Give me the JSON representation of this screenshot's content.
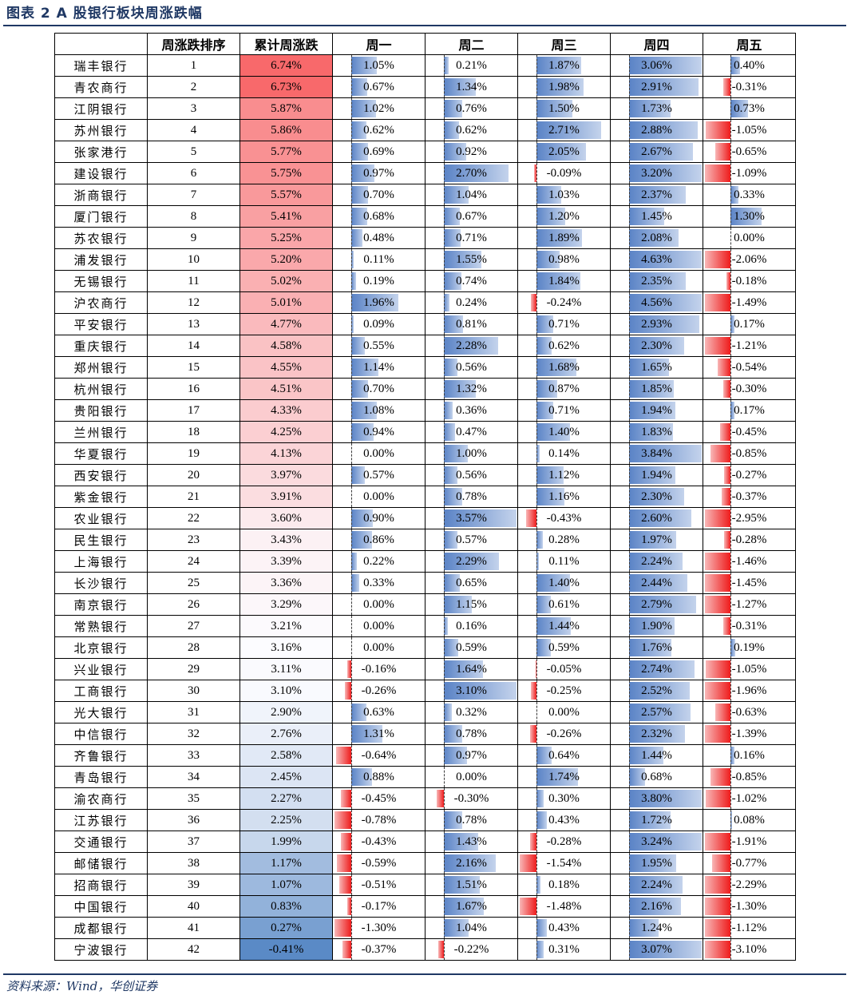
{
  "figure_title": "图表 2   A 股银行板块周涨跌幅",
  "source": "资料来源：Wind，华创证券",
  "colors": {
    "title": "#1f3864",
    "pos_bar": "#5a83c6",
    "neg_bar": "#ee1c1c",
    "heat_high": "#f8696b",
    "heat_low": "#5a8ac6"
  },
  "chart_data": {
    "type": "table",
    "title": "A 股银行板块周涨跌幅",
    "columns": [
      "",
      "周涨跌排序",
      "累计周涨跌",
      "周一",
      "周二",
      "周三",
      "周四",
      "周五"
    ],
    "days": [
      "周一",
      "周二",
      "周三",
      "周四",
      "周五"
    ],
    "rows": [
      {
        "bank": "瑞丰银行",
        "rank": 1,
        "cum": "6.74%",
        "cum_v": 6.74,
        "d": [
          1.05,
          0.21,
          1.87,
          3.06,
          0.4
        ],
        "t": [
          "1.05%",
          "0.21%",
          "1.87%",
          "3.06%",
          "0.40%"
        ]
      },
      {
        "bank": "青农商行",
        "rank": 2,
        "cum": "6.73%",
        "cum_v": 6.73,
        "d": [
          0.67,
          1.34,
          1.98,
          2.91,
          -0.31
        ],
        "t": [
          "0.67%",
          "1.34%",
          "1.98%",
          "2.91%",
          "-0.31%"
        ]
      },
      {
        "bank": "江阴银行",
        "rank": 3,
        "cum": "5.87%",
        "cum_v": 5.87,
        "d": [
          1.02,
          0.76,
          1.5,
          1.73,
          0.73
        ],
        "t": [
          "1.02%",
          "0.76%",
          "1.50%",
          "1.73%",
          "0.73%"
        ]
      },
      {
        "bank": "苏州银行",
        "rank": 4,
        "cum": "5.86%",
        "cum_v": 5.86,
        "d": [
          0.62,
          0.62,
          2.71,
          2.88,
          -1.05
        ],
        "t": [
          "0.62%",
          "0.62%",
          "2.71%",
          "2.88%",
          "-1.05%"
        ]
      },
      {
        "bank": "张家港行",
        "rank": 5,
        "cum": "5.77%",
        "cum_v": 5.77,
        "d": [
          0.69,
          0.92,
          2.05,
          2.67,
          -0.65
        ],
        "t": [
          "0.69%",
          "0.92%",
          "2.05%",
          "2.67%",
          "-0.65%"
        ]
      },
      {
        "bank": "建设银行",
        "rank": 6,
        "cum": "5.75%",
        "cum_v": 5.75,
        "d": [
          0.97,
          2.7,
          -0.09,
          3.2,
          -1.09
        ],
        "t": [
          "0.97%",
          "2.70%",
          "-0.09%",
          "3.20%",
          "-1.09%"
        ]
      },
      {
        "bank": "浙商银行",
        "rank": 7,
        "cum": "5.57%",
        "cum_v": 5.57,
        "d": [
          0.7,
          1.04,
          1.03,
          2.37,
          0.33
        ],
        "t": [
          "0.70%",
          "1.04%",
          "1.03%",
          "2.37%",
          "0.33%"
        ]
      },
      {
        "bank": "厦门银行",
        "rank": 8,
        "cum": "5.41%",
        "cum_v": 5.41,
        "d": [
          0.68,
          0.67,
          1.2,
          1.45,
          1.3
        ],
        "t": [
          "0.68%",
          "0.67%",
          "1.20%",
          "1.45%",
          "1.30%"
        ]
      },
      {
        "bank": "苏农银行",
        "rank": 9,
        "cum": "5.25%",
        "cum_v": 5.25,
        "d": [
          0.48,
          0.71,
          1.89,
          2.08,
          0.0
        ],
        "t": [
          "0.48%",
          "0.71%",
          "1.89%",
          "2.08%",
          "0.00%"
        ]
      },
      {
        "bank": "浦发银行",
        "rank": 10,
        "cum": "5.20%",
        "cum_v": 5.2,
        "d": [
          0.11,
          1.55,
          0.98,
          4.63,
          -2.06
        ],
        "t": [
          "0.11%",
          "1.55%",
          "0.98%",
          "4.63%",
          "-2.06%"
        ]
      },
      {
        "bank": "无锡银行",
        "rank": 11,
        "cum": "5.02%",
        "cum_v": 5.02,
        "d": [
          0.19,
          0.74,
          1.84,
          2.35,
          -0.18
        ],
        "t": [
          "0.19%",
          "0.74%",
          "1.84%",
          "2.35%",
          "-0.18%"
        ]
      },
      {
        "bank": "沪农商行",
        "rank": 12,
        "cum": "5.01%",
        "cum_v": 5.01,
        "d": [
          1.96,
          0.24,
          -0.24,
          4.56,
          -1.49
        ],
        "t": [
          "1.96%",
          "0.24%",
          "-0.24%",
          "4.56%",
          "-1.49%"
        ]
      },
      {
        "bank": "平安银行",
        "rank": 13,
        "cum": "4.77%",
        "cum_v": 4.77,
        "d": [
          0.09,
          0.81,
          0.71,
          2.93,
          0.17
        ],
        "t": [
          "0.09%",
          "0.81%",
          "0.71%",
          "2.93%",
          "0.17%"
        ]
      },
      {
        "bank": "重庆银行",
        "rank": 14,
        "cum": "4.58%",
        "cum_v": 4.58,
        "d": [
          0.55,
          2.28,
          0.62,
          2.3,
          -1.21
        ],
        "t": [
          "0.55%",
          "2.28%",
          "0.62%",
          "2.30%",
          "-1.21%"
        ]
      },
      {
        "bank": "郑州银行",
        "rank": 15,
        "cum": "4.55%",
        "cum_v": 4.55,
        "d": [
          1.14,
          0.56,
          1.68,
          1.65,
          -0.54
        ],
        "t": [
          "1.14%",
          "0.56%",
          "1.68%",
          "1.65%",
          "-0.54%"
        ]
      },
      {
        "bank": "杭州银行",
        "rank": 16,
        "cum": "4.51%",
        "cum_v": 4.51,
        "d": [
          0.7,
          1.32,
          0.87,
          1.85,
          -0.3
        ],
        "t": [
          "0.70%",
          "1.32%",
          "0.87%",
          "1.85%",
          "-0.30%"
        ]
      },
      {
        "bank": "贵阳银行",
        "rank": 17,
        "cum": "4.33%",
        "cum_v": 4.33,
        "d": [
          1.08,
          0.36,
          0.71,
          1.94,
          0.17
        ],
        "t": [
          "1.08%",
          "0.36%",
          "0.71%",
          "1.94%",
          "0.17%"
        ]
      },
      {
        "bank": "兰州银行",
        "rank": 18,
        "cum": "4.25%",
        "cum_v": 4.25,
        "d": [
          0.94,
          0.47,
          1.4,
          1.83,
          -0.45
        ],
        "t": [
          "0.94%",
          "0.47%",
          "1.40%",
          "1.83%",
          "-0.45%"
        ]
      },
      {
        "bank": "华夏银行",
        "rank": 19,
        "cum": "4.13%",
        "cum_v": 4.13,
        "d": [
          0.0,
          1.0,
          0.14,
          3.84,
          -0.85
        ],
        "t": [
          "0.00%",
          "1.00%",
          "0.14%",
          "3.84%",
          "-0.85%"
        ]
      },
      {
        "bank": "西安银行",
        "rank": 20,
        "cum": "3.97%",
        "cum_v": 3.97,
        "d": [
          0.57,
          0.56,
          1.12,
          1.94,
          -0.27
        ],
        "t": [
          "0.57%",
          "0.56%",
          "1.12%",
          "1.94%",
          "-0.27%"
        ]
      },
      {
        "bank": "紫金银行",
        "rank": 21,
        "cum": "3.91%",
        "cum_v": 3.91,
        "d": [
          0.0,
          0.78,
          1.16,
          2.3,
          -0.37
        ],
        "t": [
          "0.00%",
          "0.78%",
          "1.16%",
          "2.30%",
          "-0.37%"
        ]
      },
      {
        "bank": "农业银行",
        "rank": 22,
        "cum": "3.60%",
        "cum_v": 3.6,
        "d": [
          0.9,
          3.57,
          -0.43,
          2.6,
          -2.95
        ],
        "t": [
          "0.90%",
          "3.57%",
          "-0.43%",
          "2.60%",
          "-2.95%"
        ]
      },
      {
        "bank": "民生银行",
        "rank": 23,
        "cum": "3.43%",
        "cum_v": 3.43,
        "d": [
          0.86,
          0.57,
          0.28,
          1.97,
          -0.28
        ],
        "t": [
          "0.86%",
          "0.57%",
          "0.28%",
          "1.97%",
          "-0.28%"
        ]
      },
      {
        "bank": "上海银行",
        "rank": 24,
        "cum": "3.39%",
        "cum_v": 3.39,
        "d": [
          0.22,
          2.29,
          0.11,
          2.24,
          -1.46
        ],
        "t": [
          "0.22%",
          "2.29%",
          "0.11%",
          "2.24%",
          "-1.46%"
        ]
      },
      {
        "bank": "长沙银行",
        "rank": 25,
        "cum": "3.36%",
        "cum_v": 3.36,
        "d": [
          0.33,
          0.65,
          1.4,
          2.44,
          -1.45
        ],
        "t": [
          "0.33%",
          "0.65%",
          "1.40%",
          "2.44%",
          "-1.45%"
        ]
      },
      {
        "bank": "南京银行",
        "rank": 26,
        "cum": "3.29%",
        "cum_v": 3.29,
        "d": [
          0.0,
          1.15,
          0.61,
          2.79,
          -1.27
        ],
        "t": [
          "0.00%",
          "1.15%",
          "0.61%",
          "2.79%",
          "-1.27%"
        ]
      },
      {
        "bank": "常熟银行",
        "rank": 27,
        "cum": "3.21%",
        "cum_v": 3.21,
        "d": [
          0.0,
          0.16,
          1.44,
          1.9,
          -0.31
        ],
        "t": [
          "0.00%",
          "0.16%",
          "1.44%",
          "1.90%",
          "-0.31%"
        ]
      },
      {
        "bank": "北京银行",
        "rank": 28,
        "cum": "3.16%",
        "cum_v": 3.16,
        "d": [
          0.0,
          0.59,
          0.59,
          1.76,
          0.19
        ],
        "t": [
          "0.00%",
          "0.59%",
          "0.59%",
          "1.76%",
          "0.19%"
        ]
      },
      {
        "bank": "兴业银行",
        "rank": 29,
        "cum": "3.11%",
        "cum_v": 3.11,
        "d": [
          -0.16,
          1.64,
          -0.05,
          2.74,
          -1.05
        ],
        "t": [
          "-0.16%",
          "1.64%",
          "-0.05%",
          "2.74%",
          "-1.05%"
        ]
      },
      {
        "bank": "工商银行",
        "rank": 30,
        "cum": "3.10%",
        "cum_v": 3.1,
        "d": [
          -0.26,
          3.1,
          -0.25,
          2.52,
          -1.96
        ],
        "t": [
          "-0.26%",
          "3.10%",
          "-0.25%",
          "2.52%",
          "-1.96%"
        ]
      },
      {
        "bank": "光大银行",
        "rank": 31,
        "cum": "2.90%",
        "cum_v": 2.9,
        "d": [
          0.63,
          0.32,
          0.0,
          2.57,
          -0.63
        ],
        "t": [
          "0.63%",
          "0.32%",
          "0.00%",
          "2.57%",
          "-0.63%"
        ]
      },
      {
        "bank": "中信银行",
        "rank": 32,
        "cum": "2.76%",
        "cum_v": 2.76,
        "d": [
          1.31,
          0.78,
          -0.26,
          2.32,
          -1.39
        ],
        "t": [
          "1.31%",
          "0.78%",
          "-0.26%",
          "2.32%",
          "-1.39%"
        ]
      },
      {
        "bank": "齐鲁银行",
        "rank": 33,
        "cum": "2.58%",
        "cum_v": 2.58,
        "d": [
          -0.64,
          0.97,
          0.64,
          1.44,
          0.16
        ],
        "t": [
          "-0.64%",
          "0.97%",
          "0.64%",
          "1.44%",
          "0.16%"
        ]
      },
      {
        "bank": "青岛银行",
        "rank": 34,
        "cum": "2.45%",
        "cum_v": 2.45,
        "d": [
          0.88,
          0.0,
          1.74,
          0.68,
          -0.85
        ],
        "t": [
          "0.88%",
          "0.00%",
          "1.74%",
          "0.68%",
          "-0.85%"
        ]
      },
      {
        "bank": "渝农商行",
        "rank": 35,
        "cum": "2.27%",
        "cum_v": 2.27,
        "d": [
          -0.45,
          -0.3,
          0.3,
          3.8,
          -1.02
        ],
        "t": [
          "-0.45%",
          "-0.30%",
          "0.30%",
          "3.80%",
          "-1.02%"
        ]
      },
      {
        "bank": "江苏银行",
        "rank": 36,
        "cum": "2.25%",
        "cum_v": 2.25,
        "d": [
          -0.78,
          0.78,
          0.43,
          1.72,
          0.08
        ],
        "t": [
          "-0.78%",
          "0.78%",
          "0.43%",
          "1.72%",
          "0.08%"
        ]
      },
      {
        "bank": "交通银行",
        "rank": 37,
        "cum": "1.99%",
        "cum_v": 1.99,
        "d": [
          -0.43,
          1.43,
          -0.28,
          3.24,
          -1.91
        ],
        "t": [
          "-0.43%",
          "1.43%",
          "-0.28%",
          "3.24%",
          "-1.91%"
        ]
      },
      {
        "bank": "邮储银行",
        "rank": 38,
        "cum": "1.17%",
        "cum_v": 1.17,
        "d": [
          -0.59,
          2.16,
          -1.54,
          1.95,
          -0.77
        ],
        "t": [
          "-0.59%",
          "2.16%",
          "-1.54%",
          "1.95%",
          "-0.77%"
        ]
      },
      {
        "bank": "招商银行",
        "rank": 39,
        "cum": "1.07%",
        "cum_v": 1.07,
        "d": [
          -0.51,
          1.51,
          0.18,
          2.24,
          -2.29
        ],
        "t": [
          "-0.51%",
          "1.51%",
          "0.18%",
          "2.24%",
          "-2.29%"
        ]
      },
      {
        "bank": "中国银行",
        "rank": 40,
        "cum": "0.83%",
        "cum_v": 0.83,
        "d": [
          -0.17,
          1.67,
          -1.48,
          2.16,
          -1.3
        ],
        "t": [
          "-0.17%",
          "1.67%",
          "-1.48%",
          "2.16%",
          "-1.30%"
        ]
      },
      {
        "bank": "成都银行",
        "rank": 41,
        "cum": "0.27%",
        "cum_v": 0.27,
        "d": [
          -1.3,
          1.04,
          0.43,
          1.24,
          -1.12
        ],
        "t": [
          "-1.30%",
          "1.04%",
          "0.43%",
          "1.24%",
          "-1.12%"
        ]
      },
      {
        "bank": "宁波银行",
        "rank": 42,
        "cum": "-0.41%",
        "cum_v": -0.41,
        "d": [
          -0.37,
          -0.22,
          0.31,
          3.07,
          -3.1
        ],
        "t": [
          "-0.37%",
          "-0.22%",
          "0.31%",
          "3.07%",
          "-3.10%"
        ]
      }
    ]
  }
}
